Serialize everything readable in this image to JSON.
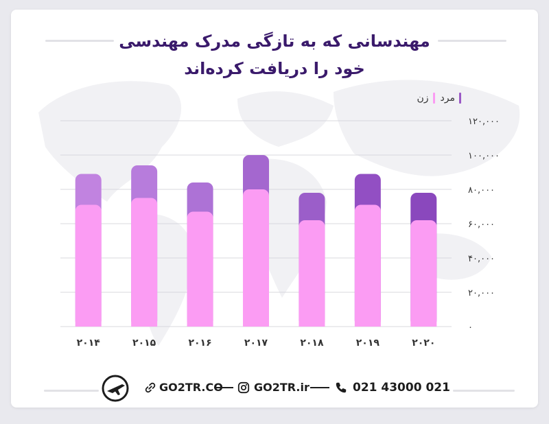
{
  "title_line1": "مهندسانی که به تازگی مدرک مهندسی",
  "title_line2": "خود را دریافت کرده‌اند",
  "legend": [
    {
      "label": "مرد",
      "color": "#9b59c6"
    },
    {
      "label": "زن",
      "color": "#fb9cf3"
    }
  ],
  "chart_data": {
    "type": "bar",
    "stacked": true,
    "categories": [
      "۲۰۱۴",
      "۲۰۱۵",
      "۲۰۱۶",
      "۲۰۱۷",
      "۲۰۱۸",
      "۲۰۱۹",
      "۲۰۲۰"
    ],
    "series": [
      {
        "name": "زن",
        "values": [
          71000,
          75000,
          67000,
          80000,
          62000,
          71000,
          62000
        ]
      },
      {
        "name": "مرد",
        "values": [
          18000,
          19000,
          17000,
          20000,
          16000,
          18000,
          16000
        ]
      }
    ],
    "yticks": [
      "۰",
      "۲۰,۰۰۰",
      "۴۰,۰۰۰",
      "۶۰,۰۰۰",
      "۸۰,۰۰۰",
      "۱۰۰,۰۰۰",
      "۱۲۰,۰۰۰"
    ],
    "ylim": [
      0,
      120000
    ],
    "grid": true,
    "legend_position": "top-right",
    "colors": {
      "female": "#fb9cf3",
      "male_shades": [
        "#c183e0",
        "#b77cdc",
        "#ad72d6",
        "#a467cf",
        "#9b5ec9",
        "#924fc3",
        "#8a48bd"
      ]
    }
  },
  "footer": {
    "phone": "021 43000 021",
    "instagram": "GO2TR.ir",
    "website": "GO2TR.CO"
  }
}
